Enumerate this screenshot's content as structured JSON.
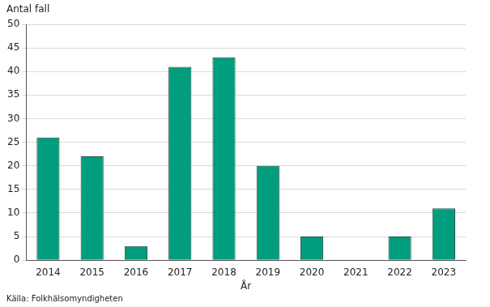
{
  "chart_data": {
    "type": "bar",
    "y_label": "Antal fall",
    "x_label": "År",
    "source": "Källa: Folkhälsomyndigheten",
    "categories": [
      "2014",
      "2015",
      "2016",
      "2017",
      "2018",
      "2019",
      "2020",
      "2021",
      "2022",
      "2023"
    ],
    "values": [
      26,
      22,
      3,
      41,
      43,
      20,
      5,
      0,
      5,
      11
    ],
    "color": "#009e7e",
    "ylim": [
      0,
      50
    ],
    "yticks": [
      0,
      5,
      10,
      15,
      20,
      25,
      30,
      35,
      40,
      45,
      50
    ],
    "grid": true
  }
}
